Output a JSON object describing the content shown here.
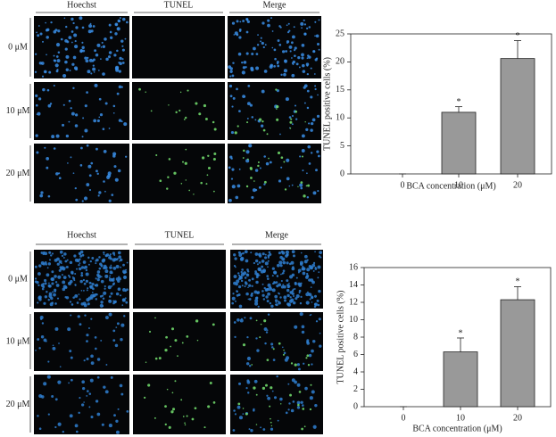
{
  "figure_panels": [
    {
      "columns": [
        "Hoechst",
        "TUNEL",
        "Merge"
      ],
      "rows": [
        "0 μM",
        "10 μM",
        "20 μM"
      ]
    },
    {
      "columns": [
        "Hoechst",
        "TUNEL",
        "Merge"
      ],
      "rows": [
        "0 μM",
        "10 μM",
        "20 μM"
      ]
    }
  ],
  "chart_data": [
    {
      "type": "bar",
      "categories": [
        "0",
        "10",
        "20"
      ],
      "values": [
        0,
        11,
        20.6
      ],
      "errors": [
        0,
        1,
        3.2
      ],
      "significance": [
        null,
        "*",
        "*"
      ],
      "color": "#999999",
      "ylim": [
        0,
        25
      ],
      "yticks": [
        0,
        5,
        10,
        15,
        20,
        25
      ],
      "ylabel": "TUNEL positive cells (%)",
      "xlabel": "BCA concentration (μM)"
    },
    {
      "type": "bar",
      "categories": [
        "0",
        "10",
        "20"
      ],
      "values": [
        0,
        6.3,
        12.3
      ],
      "errors": [
        0,
        1.6,
        1.5
      ],
      "significance": [
        null,
        "*",
        "*"
      ],
      "color": "#999999",
      "ylim": [
        0,
        16
      ],
      "yticks": [
        0,
        2,
        4,
        6,
        8,
        10,
        12,
        14,
        16
      ],
      "ylabel": "TUNEL positive cells (%)",
      "xlabel": "BCA concentration (μM)"
    }
  ]
}
